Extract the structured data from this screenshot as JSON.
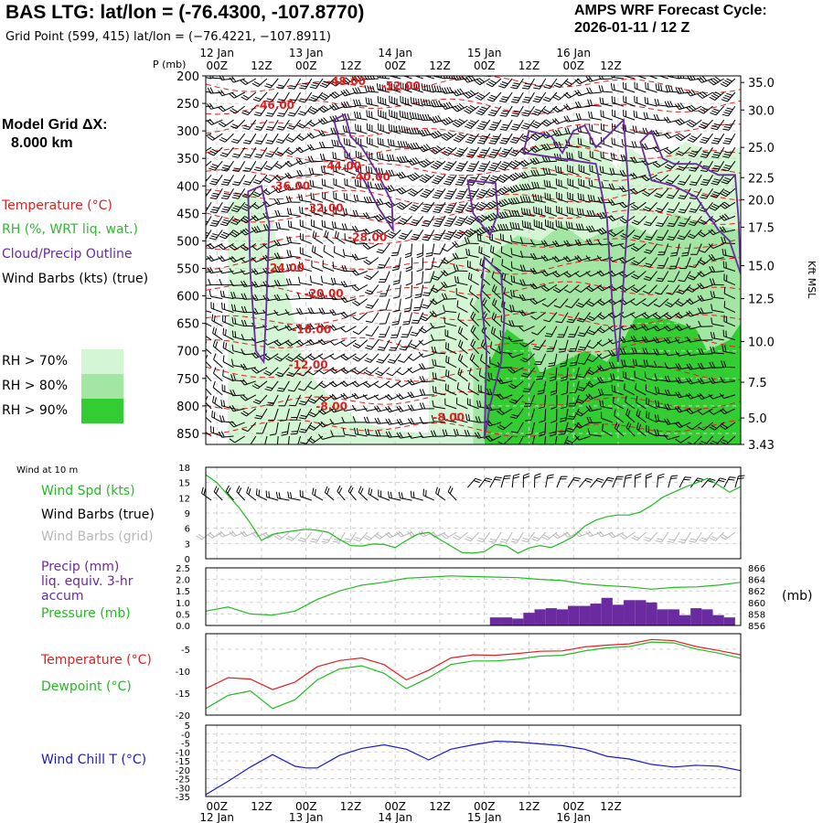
{
  "header": {
    "title": "BAS LTG:  lat/lon = (-76.4300, -107.8770)",
    "subtitle": "Grid Point (599, 415) lat/lon = (−76.4221, −107.8911)",
    "cycle_line1": "AMPS WRF Forecast Cycle:",
    "cycle_line2": "2026-01-11 / 12  Z",
    "grid_line1": "Model Grid ΔX:",
    "grid_line2": "8.000 km"
  },
  "legend": {
    "temperature": "Temperature (°C)",
    "rh": "RH (%, WRT liq. wat.)",
    "cloud": "Cloud/Precip Outline",
    "wind": "Wind Barbs (kts) (true)",
    "rh70": "RH > 70%",
    "rh80": "RH > 80%",
    "rh90": "RH > 90%",
    "color_temp": "#e02020",
    "color_rh": "#2fb82f",
    "color_cloud": "#6a2aa0",
    "color_rh70": "#d4f6d4",
    "color_rh80": "#a3e6a3",
    "color_rh90": "#33cc33"
  },
  "time_axis": {
    "hour_ticks": [
      "00Z",
      "12Z",
      "00Z",
      "12Z",
      "00Z",
      "12Z",
      "00Z",
      "12Z",
      "00Z",
      "12Z"
    ],
    "day_labels": [
      "12 Jan",
      "13 Jan",
      "14 Jan",
      "15 Jan",
      "16 Jan"
    ]
  },
  "chart_data": [
    {
      "type": "contour",
      "panel": "sounding",
      "ylabel": "P (mb)",
      "right_axis_label": "Kft MSL",
      "pressure_ticks": [
        "200",
        "250",
        "300",
        "350",
        "400",
        "450",
        "500",
        "550",
        "600",
        "650",
        "700",
        "750",
        "800",
        "850"
      ],
      "height_ticks": [
        "35.0",
        "30.0",
        "25.0",
        "22.5",
        "20.0",
        "17.5",
        "15.0",
        "12.5",
        "10.0",
        "7.5",
        "5.0",
        "3.43"
      ],
      "height_tick_pressures": [
        212,
        262,
        330,
        385,
        425,
        475,
        545,
        605,
        683,
        757,
        822,
        870
      ],
      "temperature_labels": [
        {
          "text": "-48.00",
          "t": 12.6,
          "p": 217
        },
        {
          "text": "-52.00",
          "t": 17.5,
          "p": 225
        },
        {
          "text": "-46.00",
          "t": 6.2,
          "p": 260
        },
        {
          "text": "-44.00",
          "t": 12.2,
          "p": 370
        },
        {
          "text": "-40.00",
          "t": 14.8,
          "p": 390
        },
        {
          "text": "-36.00",
          "t": 7.6,
          "p": 407
        },
        {
          "text": "-32.00",
          "t": 10.6,
          "p": 447
        },
        {
          "text": "-28.00",
          "t": 14.5,
          "p": 500
        },
        {
          "text": "-24.00",
          "t": 7.1,
          "p": 556
        },
        {
          "text": "-20.00",
          "t": 10.6,
          "p": 602
        },
        {
          "text": "-16.00",
          "t": 9.5,
          "p": 668
        },
        {
          "text": "-12.00",
          "t": 9.2,
          "p": 732
        },
        {
          "text": "-8.00",
          "t": 11.3,
          "p": 808
        },
        {
          "text": "-8.00",
          "t": 21.8,
          "p": 828
        }
      ],
      "units": {
        "x": "3-hourly forecast steps from 12 Jan 00Z (x-axis starts 11 Jan 15Z)",
        "y": "mb"
      }
    },
    {
      "type": "line",
      "panel": "wind",
      "title": "Wind at 10 m",
      "series": [
        {
          "name": "Wind Spd (kts)",
          "color": "#22bb22",
          "x": [
            0,
            1,
            2,
            3,
            4,
            5,
            6,
            7,
            8,
            9,
            10,
            11,
            12,
            13,
            14,
            15,
            16,
            17,
            18,
            19,
            20,
            21,
            22,
            23,
            24,
            25,
            26,
            27,
            28,
            29,
            30,
            31,
            32,
            33,
            34,
            35,
            36,
            37,
            38,
            39,
            40,
            41,
            42,
            43,
            44,
            45,
            46,
            47,
            48
          ],
          "values": [
            16.5,
            15,
            12.5,
            10,
            7,
            3.6,
            4.8,
            5.2,
            5.5,
            5.8,
            5.6,
            5.2,
            3.8,
            2.6,
            2.5,
            2.9,
            2.8,
            2.2,
            3.6,
            4.8,
            5.2,
            3.8,
            2.5,
            1.2,
            1.1,
            1.4,
            2.8,
            2.5,
            1.1,
            2.1,
            2.6,
            2.2,
            3.2,
            4.4,
            6.4,
            7.6,
            8.3,
            8.6,
            8.6,
            9.2,
            10.5,
            12.1,
            13.1,
            14.1,
            14.9,
            15.8,
            14.5,
            13.1,
            14.2
          ]
        },
        {
          "name": "Wind Barbs (true)",
          "color": "#000000"
        },
        {
          "name": "Wind Barbs (grid)",
          "color": "#b8b8b8"
        }
      ],
      "yticks": [
        "0",
        "3",
        "6",
        "9",
        "12",
        "15",
        "18"
      ],
      "ylim": [
        0,
        18
      ]
    },
    {
      "type": "bar",
      "panel": "precip",
      "series": [
        {
          "name": "Precip (mm) liq. equiv. 3-hr accum",
          "color": "#6a2aa0",
          "x": [
            26,
            27,
            28,
            29,
            30,
            31,
            32,
            33,
            34,
            35,
            36,
            37,
            38,
            39,
            40,
            41,
            42,
            43,
            44,
            45,
            46,
            47
          ],
          "values": [
            0.35,
            0.35,
            0.3,
            0.55,
            0.7,
            0.75,
            0.7,
            0.85,
            0.85,
            0.95,
            1.2,
            0.9,
            1.1,
            1.1,
            1.0,
            0.7,
            0.7,
            0.45,
            0.75,
            0.7,
            0.45,
            0.35
          ]
        },
        {
          "name": "Pressure (mb)",
          "color": "#22bb22",
          "x": [
            0,
            2,
            4,
            6,
            8,
            10,
            12,
            14,
            16,
            18,
            20,
            22,
            24,
            26,
            28,
            30,
            32,
            34,
            36,
            38,
            40,
            42,
            44,
            46,
            48
          ],
          "values": [
            858.5,
            859.2,
            858.0,
            857.8,
            858.5,
            860.5,
            862.0,
            863.0,
            863.5,
            864.2,
            864.4,
            864.6,
            864.5,
            864.4,
            864.3,
            864.0,
            863.8,
            863.2,
            862.9,
            862.7,
            862.3,
            862.6,
            862.7,
            863.0,
            863.5
          ]
        }
      ],
      "left_yticks": [
        "0.0",
        "0.5",
        "1.0",
        "1.5",
        "2.0",
        "2.5"
      ],
      "right_yticks": [
        "856",
        "858",
        "860",
        "862",
        "864",
        "866"
      ],
      "right_ylabel": "(mb)",
      "ylim": [
        0,
        2.5
      ],
      "ylim_right": [
        856,
        866
      ]
    },
    {
      "type": "line",
      "panel": "temperature",
      "series": [
        {
          "name": "Temperature (°C)",
          "color": "#e02020",
          "x": [
            0,
            2,
            4,
            6,
            8,
            10,
            12,
            14,
            16,
            18,
            20,
            22,
            24,
            26,
            28,
            30,
            32,
            34,
            36,
            38,
            40,
            42,
            44,
            46,
            48
          ],
          "values": [
            -14,
            -11.5,
            -11.8,
            -14.2,
            -12.5,
            -9,
            -7.6,
            -7,
            -8.5,
            -12,
            -9.8,
            -7,
            -6.3,
            -6.4,
            -6,
            -5.5,
            -5.4,
            -4.5,
            -4.1,
            -3.8,
            -2.8,
            -3.1,
            -4.4,
            -5.3,
            -6.3
          ]
        },
        {
          "name": "Dewpoint (°C)",
          "color": "#22bb22",
          "x": [
            0,
            2,
            4,
            6,
            8,
            10,
            12,
            14,
            16,
            18,
            20,
            22,
            24,
            26,
            28,
            30,
            32,
            34,
            36,
            38,
            40,
            42,
            44,
            46,
            48
          ],
          "values": [
            -18.5,
            -15.5,
            -14.5,
            -18.5,
            -16.5,
            -12,
            -9.5,
            -8.8,
            -10.5,
            -14,
            -11.5,
            -8.5,
            -7.7,
            -7.7,
            -7.3,
            -6.6,
            -6.4,
            -5.4,
            -4.7,
            -4.4,
            -3.4,
            -3.6,
            -5.0,
            -5.9,
            -7.1
          ]
        }
      ],
      "yticks": [
        "-20",
        "-15",
        "-10",
        "-5"
      ],
      "ylim": [
        -20,
        -1.5
      ]
    },
    {
      "type": "line",
      "panel": "windchill",
      "series": [
        {
          "name": "Wind Chill T (°C)",
          "color": "#1a1acc",
          "x": [
            0,
            2,
            4,
            6,
            8,
            9,
            10,
            12,
            14,
            16,
            18,
            20,
            22,
            24,
            26,
            28,
            30,
            32,
            34,
            36,
            38,
            40,
            42,
            44,
            46,
            48
          ],
          "values": [
            -34,
            -26.5,
            -18.5,
            -11.5,
            -18,
            -19,
            -19,
            -12,
            -8,
            -6,
            -8.5,
            -14.5,
            -8.5,
            -6,
            -4,
            -4.5,
            -5.5,
            -6.5,
            -8.5,
            -12.5,
            -14,
            -17,
            -18.5,
            -17.5,
            -18,
            -20.5
          ]
        }
      ],
      "yticks": [
        "-35",
        "-30",
        "-25",
        "-20",
        "-15",
        "-10",
        "-5",
        "-0",
        "5"
      ],
      "ylim": [
        -35,
        5
      ]
    }
  ]
}
